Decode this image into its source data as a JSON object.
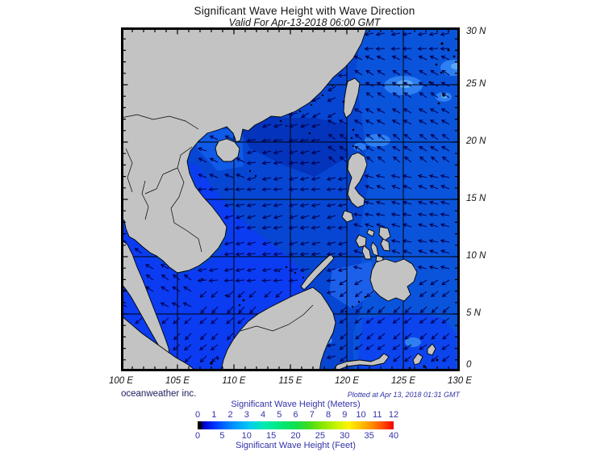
{
  "title": "Significant Wave Height with Wave Direction",
  "subtitle": "Valid For Apr-13-2018 06:00 GMT",
  "map": {
    "lon_labels": [
      "100 E",
      "105 E",
      "110 E",
      "115 E",
      "120 E",
      "125 E",
      "130 E"
    ],
    "lat_labels": [
      "30 N",
      "25 N",
      "20 N",
      "15 N",
      "10 N",
      "5 N",
      "0"
    ],
    "credit": "oceanweather inc.",
    "plotted_at": "Plotted at Apr 13, 2018 01:31 GMT"
  },
  "colorbar": {
    "top_label": "Significant Wave Height (Meters)",
    "bottom_label": "Significant Wave Height (Feet)",
    "meters_ticks": [
      "0",
      "1",
      "2",
      "3",
      "4",
      "5",
      "6",
      "7",
      "8",
      "9",
      "10",
      "11",
      "12"
    ],
    "feet_ticks": [
      "0",
      "5",
      "10",
      "15",
      "20",
      "25",
      "30",
      "35",
      "40"
    ],
    "gradient": [
      [
        0,
        "#000000"
      ],
      [
        0.015,
        "#000000"
      ],
      [
        0.03,
        "#0000cc"
      ],
      [
        0.09,
        "#0038ff"
      ],
      [
        0.18,
        "#0090ff"
      ],
      [
        0.26,
        "#00c8f4"
      ],
      [
        0.34,
        "#00ecb0"
      ],
      [
        0.42,
        "#00e87c"
      ],
      [
        0.5,
        "#0ee04e"
      ],
      [
        0.57,
        "#44dc1c"
      ],
      [
        0.64,
        "#8ce800"
      ],
      [
        0.71,
        "#c8f400"
      ],
      [
        0.77,
        "#fff200"
      ],
      [
        0.83,
        "#ffc400"
      ],
      [
        0.89,
        "#ff8c00"
      ],
      [
        0.95,
        "#ff4600"
      ],
      [
        1,
        "#f20000"
      ]
    ]
  },
  "colors": {
    "sea": "#0646d2",
    "sea_pacific": "#0a54dc",
    "sea_dark": "#0334bb",
    "sea_tonkin": "#0f5ae6",
    "sea_bright": "#0b3cf2",
    "sea_sulu": "#1c60ea",
    "sea_celebes": "#0c44ee",
    "sea_light": "#2e80f2",
    "sea_lightest": "#5aa8f8",
    "land": "#c3c3c3",
    "coast": "#000000",
    "arrow": "#000050",
    "grid": "#000000"
  },
  "chart_data": {
    "type": "heatmap",
    "title": "Significant Wave Height with Wave Direction",
    "valid_time": "Apr-13-2018 06:00 GMT",
    "plotted_at": "Apr 13, 2018 01:31 GMT",
    "region": {
      "lon_min": 100,
      "lon_max": 130,
      "lat_min": 0,
      "lat_max": 30,
      "lon_ticks": [
        100,
        105,
        110,
        115,
        120,
        125,
        130
      ],
      "lat_ticks": [
        0,
        5,
        10,
        15,
        20,
        25,
        30
      ],
      "grid_deg": 5,
      "minor_tick_deg": 1
    },
    "scale_meters": [
      0,
      1,
      2,
      3,
      4,
      5,
      6,
      7,
      8,
      9,
      10,
      11,
      12
    ],
    "scale_feet": [
      0,
      5,
      10,
      15,
      20,
      25,
      30,
      35,
      40
    ],
    "colorbar_range_meters": [
      0,
      12
    ],
    "colorbar_range_feet": [
      0,
      40
    ],
    "values_note": "South China Sea / Philippine Sea wave heights mostly 0.5-2.5 m (blue shades); wave direction arrows point mostly westward to southwestward, northwestward in Luzon Strait and Gulf of Thailand"
  }
}
